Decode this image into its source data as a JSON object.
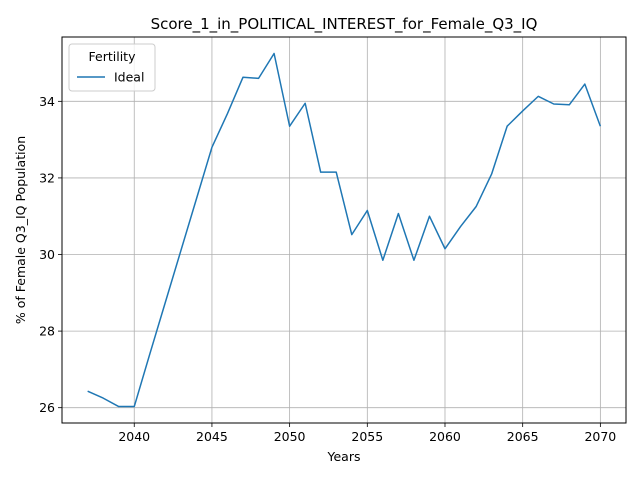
{
  "chart_data": {
    "type": "line",
    "title": "Score_1_in_POLITICAL_INTEREST_for_Female_Q3_IQ",
    "xlabel": "Years",
    "ylabel": "% of Female Q3_IQ Population",
    "xlim": [
      2035.35,
      2071.65
    ],
    "ylim": [
      25.6,
      35.68
    ],
    "xticks": [
      2040,
      2045,
      2050,
      2055,
      2060,
      2065,
      2070
    ],
    "yticks": [
      26,
      28,
      30,
      32,
      34
    ],
    "grid": true,
    "legend": {
      "title": "Fertility",
      "position": "top-left"
    },
    "series": [
      {
        "name": "Ideal",
        "color": "#1f77b4",
        "x": [
          2037,
          2038,
          2039,
          2040,
          2041,
          2042,
          2043,
          2044,
          2045,
          2046,
          2047,
          2048,
          2049,
          2050,
          2051,
          2052,
          2053,
          2054,
          2055,
          2056,
          2057,
          2058,
          2059,
          2060,
          2061,
          2062,
          2063,
          2064,
          2065,
          2066,
          2067,
          2068,
          2069,
          2070
        ],
        "y": [
          26.43,
          26.25,
          26.03,
          26.03,
          27.4,
          28.75,
          30.1,
          31.45,
          32.8,
          33.68,
          34.63,
          34.6,
          35.25,
          33.35,
          33.95,
          32.15,
          32.15,
          30.52,
          31.15,
          29.85,
          31.07,
          29.85,
          31.0,
          30.15,
          30.73,
          31.25,
          32.1,
          33.35,
          33.75,
          34.13,
          33.93,
          33.91,
          34.45,
          33.35
        ]
      }
    ]
  }
}
